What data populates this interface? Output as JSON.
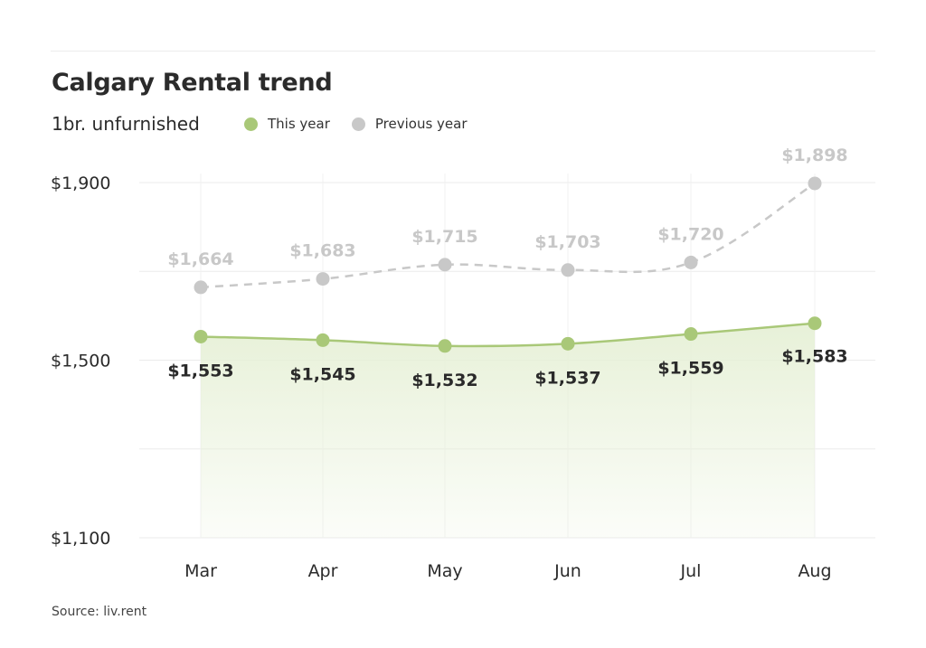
{
  "header": {
    "title": "Calgary Rental trend",
    "subtitle": "1br. unfurnished"
  },
  "legend": {
    "this_year": "This year",
    "previous_year": "Previous year"
  },
  "source": "Source: liv.rent",
  "colors": {
    "this_year": "#a9c878",
    "previous_year": "#c8c8c8",
    "fill": "#e6f0d6"
  },
  "chart_data": {
    "type": "line",
    "title": "Calgary Rental trend",
    "subtitle": "1br. unfurnished",
    "categories": [
      "Mar",
      "Apr",
      "May",
      "Jun",
      "Jul",
      "Aug"
    ],
    "series": [
      {
        "name": "This year",
        "values": [
          1553,
          1545,
          1532,
          1537,
          1559,
          1583
        ],
        "labels": [
          "$1,553",
          "$1,545",
          "$1,532",
          "$1,537",
          "$1,559",
          "$1,583"
        ]
      },
      {
        "name": "Previous year",
        "values": [
          1664,
          1683,
          1715,
          1703,
          1720,
          1898
        ],
        "labels": [
          "$1,664",
          "$1,683",
          "$1,715",
          "$1,703",
          "$1,720",
          "$1,898"
        ]
      }
    ],
    "y_ticks": [
      1100,
      1500,
      1900
    ],
    "y_tick_labels": [
      "$1,100",
      "$1,500",
      "$1,900"
    ],
    "ylim": [
      1100,
      1900
    ],
    "grid": true,
    "legend_position": "top"
  }
}
